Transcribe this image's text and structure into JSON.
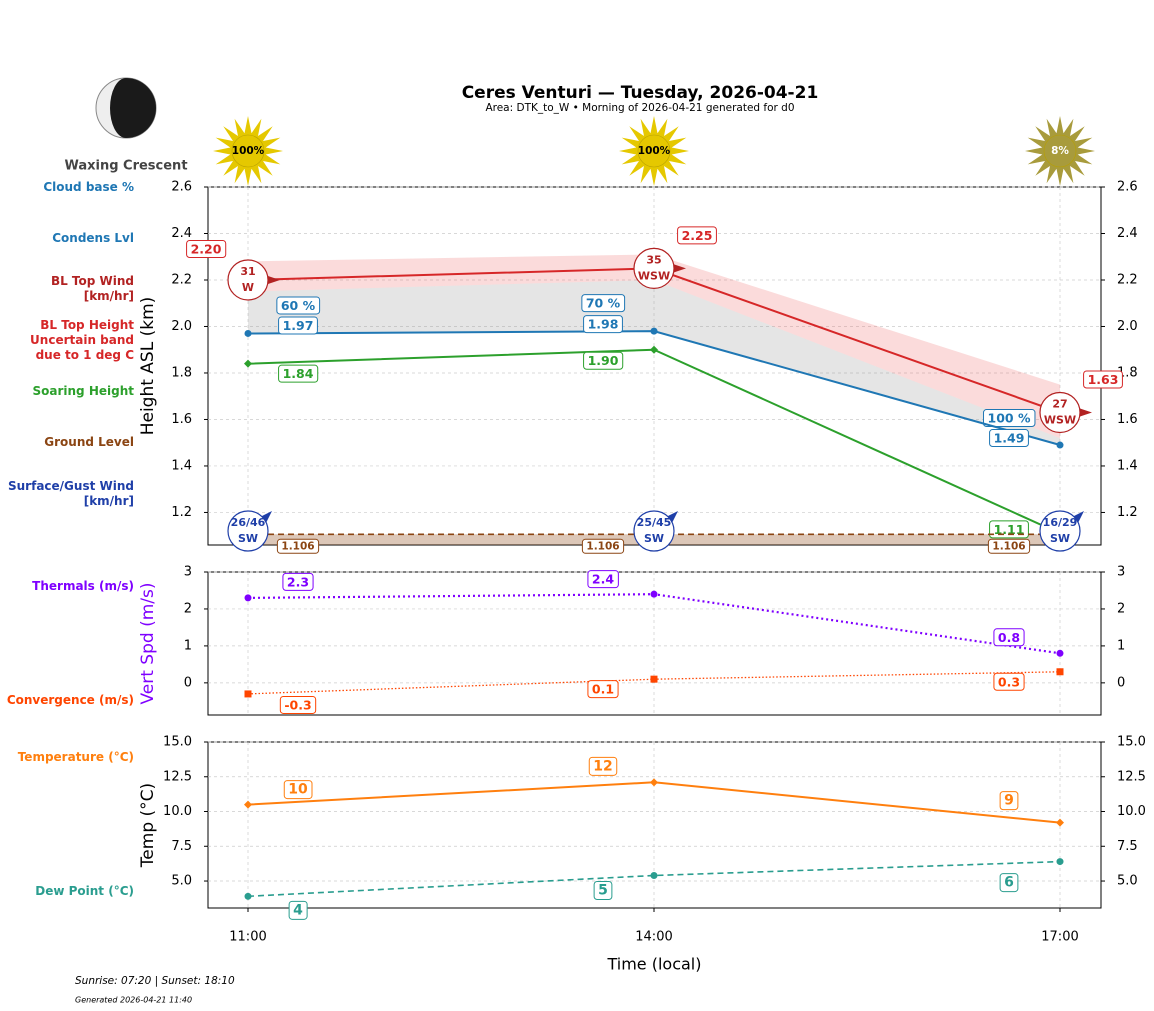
{
  "header": {
    "title": "Ceres Venturi — Tuesday, 2026-04-21",
    "subtitle": "Area: DTK_to_W • Morning of 2026-04-21 generated for d0",
    "moon_phase": "Waxing Crescent"
  },
  "sunshine": {
    "values": [
      100,
      100,
      8
    ],
    "value_labels": [
      "100%",
      "100%",
      "8%"
    ],
    "colors": [
      "#e5c800",
      "#e5c800",
      "#a89b3c"
    ]
  },
  "chart_data": [
    {
      "type": "line",
      "ylabel": "Height ASL (km)",
      "ylim": [
        1.06,
        2.6
      ],
      "yticks": [
        1.2,
        1.4,
        1.6,
        1.8,
        {
          "value": 2,
          "label": "2.0"
        },
        2.2,
        2.4,
        2.6
      ],
      "grid": true,
      "mirror_y": true,
      "series": [
        {
          "name": "BL Top Height\nUncertain band\ndue to 1 deg C",
          "color": "#d62728",
          "values": [
            2.2,
            2.25,
            1.63
          ],
          "value_labels": [
            "2.20",
            "2.25",
            "1.63"
          ],
          "band_upper": [
            2.28,
            2.31,
            1.75
          ],
          "band_lower": [
            2.15,
            2.2,
            1.52
          ]
        },
        {
          "name": "Condens Lvl",
          "color": "#1f77b4",
          "marker": "circle",
          "values": [
            1.97,
            1.98,
            1.49
          ]
        },
        {
          "name": "Soaring Height",
          "color": "#2ca02c",
          "marker": "diamond",
          "values": [
            1.84,
            1.9,
            1.11
          ],
          "value_labels": [
            "1.84",
            "1.90",
            "1.11"
          ]
        },
        {
          "name": "Ground Level",
          "color": "#8b4513",
          "style": "dashed",
          "values": [
            1.106,
            1.106,
            1.106
          ]
        }
      ],
      "cloud_base": {
        "name": "Cloud base %",
        "color": "#1f77b4",
        "values": [
          60,
          70,
          100
        ],
        "value_labels": [
          "60 %",
          "70 %",
          "100 %"
        ]
      },
      "bl_top_wind": {
        "name": "BL Top Wind\n[km/hr]",
        "color": "#b22222",
        "speeds": [
          31,
          35,
          27
        ],
        "directions": [
          "W",
          "WSW",
          "WSW"
        ]
      },
      "surface_wind": {
        "name": "Surface/Gust Wind\n[km/hr]",
        "color": "#1f3fa8",
        "speeds": [
          26,
          25,
          16
        ],
        "gusts": [
          46,
          45,
          29
        ],
        "value_labels": [
          "26/46",
          "25/45",
          "16/29"
        ],
        "directions": [
          "SW",
          "SW",
          "SW"
        ]
      }
    },
    {
      "type": "line",
      "ylabel": "Vert Spd (m/s)",
      "ylabel_color": "#7f00ff",
      "ylim": [
        -0.87,
        3
      ],
      "yticks": [
        0,
        1,
        2,
        3
      ],
      "grid": true,
      "mirror_y": true,
      "series": [
        {
          "name": "Thermals (m/s)",
          "color": "#7f00ff",
          "style": "dotted",
          "marker": "circle",
          "values": [
            2.3,
            2.4,
            0.8
          ]
        },
        {
          "name": "Convergence (m/s)",
          "color": "#ff4500",
          "style": "thin-dotted",
          "marker": "square",
          "values": [
            -0.3,
            0.1,
            0.3
          ]
        }
      ]
    },
    {
      "type": "line",
      "ylabel": "Temp (°C)",
      "xlabel": "Time (local)",
      "categories": [
        "11:00",
        "14:00",
        "17:00"
      ],
      "ylim": [
        3.06,
        15
      ],
      "yticks": [
        {
          "value": 5,
          "label": "5.0"
        },
        7.5,
        {
          "value": 10,
          "label": "10.0"
        },
        12.5,
        {
          "value": 15,
          "label": "15.0"
        }
      ],
      "grid": true,
      "mirror_y": true,
      "series": [
        {
          "name": "Temperature (°C)",
          "color": "#ff7f0e",
          "marker": "diamond",
          "values": [
            10.5,
            12.1,
            9.2
          ],
          "value_labels": [
            "10",
            "12",
            "9"
          ]
        },
        {
          "name": "Dew Point (°C)",
          "color": "#2a9d8f",
          "style": "dashed",
          "marker": "circle",
          "values": [
            3.9,
            5.4,
            6.4
          ],
          "value_labels": [
            "4",
            "5",
            "6"
          ]
        }
      ]
    }
  ],
  "footer": {
    "sun_times": "Sunrise: 07:20 | Sunset: 18:10",
    "generated": "Generated 2026-04-21 11:40"
  }
}
